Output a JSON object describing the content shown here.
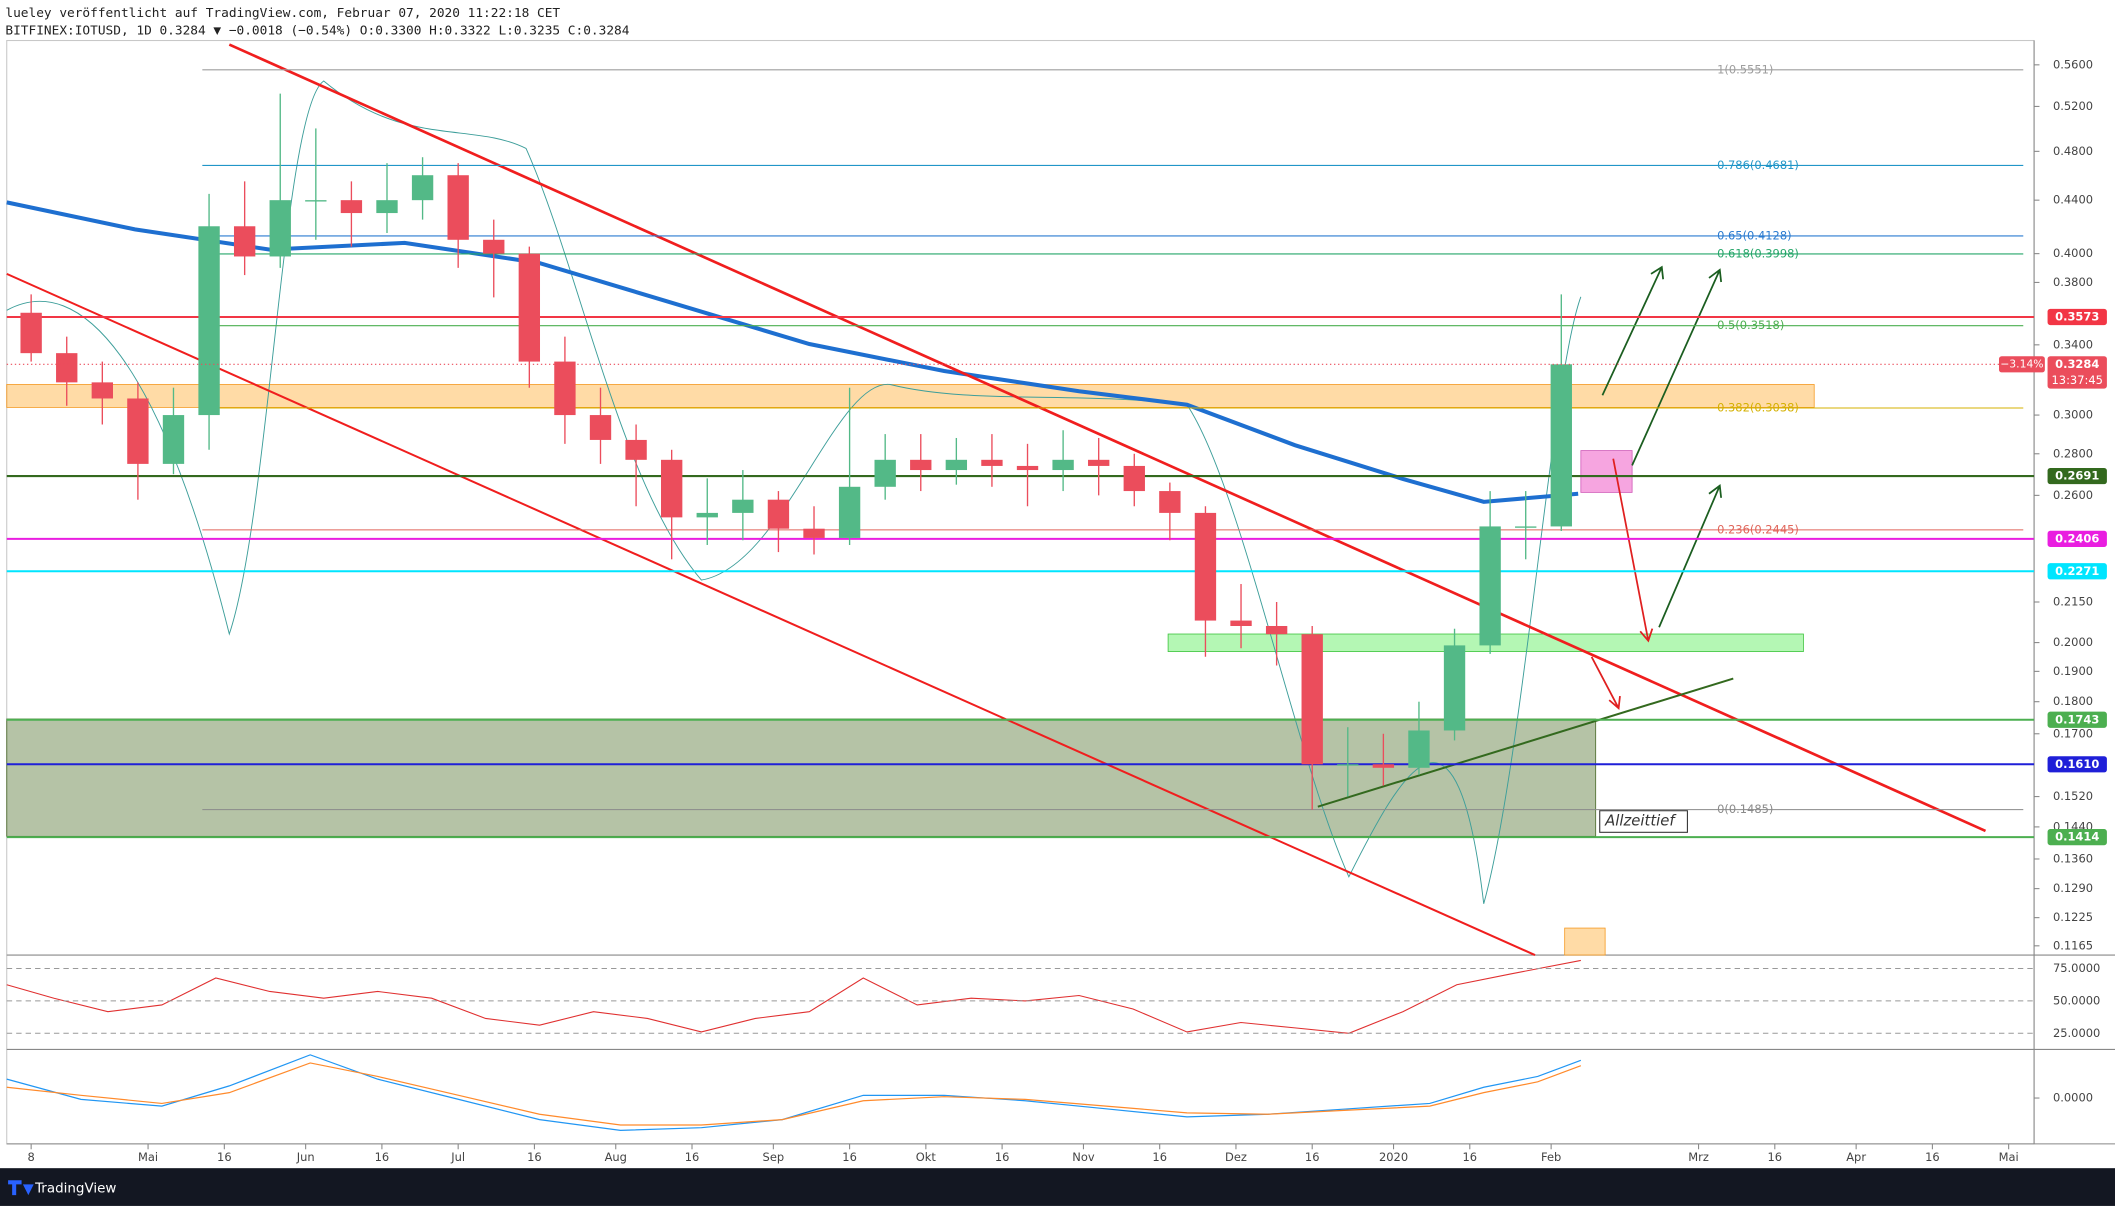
{
  "header": {
    "line1": "lueley veröffentlicht auf TradingView.com, Februar 07, 2020 11:22:18 CET",
    "line2": "BITFINEX:IOTUSD, 1D 0.3284 ▼ −0.0018 (−0.54%) O:0.3300 H:0.3322 L:0.3235 C:0.3284"
  },
  "chart_data": {
    "type": "candlestick",
    "x": [
      0,
      7,
      14,
      21,
      28,
      35,
      42,
      49,
      56,
      63,
      70,
      77,
      84,
      91,
      98,
      105,
      112,
      119,
      126,
      133,
      140,
      147,
      154,
      161,
      168,
      175,
      182,
      189,
      196,
      203,
      210,
      217,
      224,
      231,
      238,
      245,
      252,
      259,
      266,
      273,
      280,
      287,
      294,
      301
    ],
    "open": [
      0.36,
      0.335,
      0.318,
      0.309,
      0.275,
      0.3,
      0.42,
      0.398,
      0.44,
      0.44,
      0.43,
      0.44,
      0.46,
      0.41,
      0.4,
      0.33,
      0.3,
      0.287,
      0.277,
      0.25,
      0.252,
      0.258,
      0.245,
      0.241,
      0.264,
      0.277,
      0.272,
      0.277,
      0.274,
      0.272,
      0.277,
      0.274,
      0.262,
      0.252,
      0.208,
      0.206,
      0.203,
      0.161,
      0.161,
      0.16,
      0.171,
      0.199,
      0.246,
      0.246
    ],
    "high": [
      0.372,
      0.345,
      0.33,
      0.318,
      0.315,
      0.445,
      0.455,
      0.532,
      0.5,
      0.455,
      0.47,
      0.475,
      0.47,
      0.425,
      0.405,
      0.345,
      0.315,
      0.295,
      0.282,
      0.268,
      0.272,
      0.262,
      0.255,
      0.315,
      0.29,
      0.29,
      0.288,
      0.29,
      0.285,
      0.292,
      0.288,
      0.28,
      0.266,
      0.255,
      0.222,
      0.215,
      0.206,
      0.172,
      0.17,
      0.18,
      0.205,
      0.262,
      0.262,
      0.372
    ],
    "low": [
      0.33,
      0.305,
      0.295,
      0.258,
      0.27,
      0.282,
      0.385,
      0.39,
      0.41,
      0.405,
      0.415,
      0.425,
      0.39,
      0.37,
      0.315,
      0.285,
      0.275,
      0.255,
      0.232,
      0.238,
      0.24,
      0.235,
      0.234,
      0.238,
      0.258,
      0.262,
      0.265,
      0.264,
      0.255,
      0.262,
      0.26,
      0.255,
      0.24,
      0.195,
      0.198,
      0.192,
      0.1485,
      0.152,
      0.155,
      0.158,
      0.168,
      0.196,
      0.232,
      0.244
    ],
    "close": [
      0.335,
      0.318,
      0.309,
      0.275,
      0.3,
      0.42,
      0.398,
      0.44,
      0.44,
      0.43,
      0.44,
      0.46,
      0.41,
      0.4,
      0.33,
      0.3,
      0.287,
      0.277,
      0.25,
      0.252,
      0.258,
      0.245,
      0.241,
      0.264,
      0.277,
      0.272,
      0.277,
      0.274,
      0.272,
      0.277,
      0.274,
      0.262,
      0.252,
      0.208,
      0.206,
      0.203,
      0.161,
      0.161,
      0.16,
      0.171,
      0.199,
      0.246,
      0.246,
      0.3284
    ],
    "up_color": "#53b987",
    "down_color": "#eb4d5c",
    "log_scale": true,
    "xlim": [
      -4.8,
      394.0
    ],
    "xticks": [
      {
        "value": 0,
        "label": "8"
      },
      {
        "value": 23,
        "label": "Mai"
      },
      {
        "value": 38,
        "label": "16"
      },
      {
        "value": 54,
        "label": "Jun"
      },
      {
        "value": 69,
        "label": "16"
      },
      {
        "value": 84,
        "label": "Jul"
      },
      {
        "value": 99,
        "label": "16"
      },
      {
        "value": 115,
        "label": "Aug"
      },
      {
        "value": 130,
        "label": "16"
      },
      {
        "value": 146,
        "label": "Sep"
      },
      {
        "value": 161,
        "label": "16"
      },
      {
        "value": 176,
        "label": "Okt"
      },
      {
        "value": 191,
        "label": "16"
      },
      {
        "value": 207,
        "label": "Nov"
      },
      {
        "value": 222,
        "label": "16"
      },
      {
        "value": 237,
        "label": "Dez"
      },
      {
        "value": 252,
        "label": "16"
      },
      {
        "value": 268,
        "label": "2020"
      },
      {
        "value": 283,
        "label": "16"
      },
      {
        "value": 299,
        "label": "Feb"
      },
      {
        "value": 328,
        "label": "Mrz"
      },
      {
        "value": 343,
        "label": "16"
      },
      {
        "value": 359,
        "label": "Apr"
      },
      {
        "value": 374,
        "label": "16"
      },
      {
        "value": 389,
        "label": "Mai"
      }
    ],
    "ylim": [
      0.1146,
      0.5848
    ],
    "yticks": [
      {
        "value": 0.56,
        "label": "0.5600"
      },
      {
        "value": 0.52,
        "label": "0.5200"
      },
      {
        "value": 0.48,
        "label": "0.4800"
      },
      {
        "value": 0.44,
        "label": "0.4400"
      },
      {
        "value": 0.4,
        "label": "0.4000"
      },
      {
        "value": 0.38,
        "label": "0.3800"
      },
      {
        "value": 0.34,
        "label": "0.3400"
      },
      {
        "value": 0.3,
        "label": "0.3000"
      },
      {
        "value": 0.28,
        "label": "0.2800"
      },
      {
        "value": 0.26,
        "label": "0.2600"
      },
      {
        "value": 0.215,
        "label": "0.2150"
      },
      {
        "value": 0.2,
        "label": "0.2000"
      },
      {
        "value": 0.19,
        "label": "0.1900"
      },
      {
        "value": 0.18,
        "label": "0.1800"
      },
      {
        "value": 0.17,
        "label": "0.1700"
      },
      {
        "value": 0.152,
        "label": "0.1520"
      },
      {
        "value": 0.144,
        "label": "0.1440"
      },
      {
        "value": 0.136,
        "label": "0.1360"
      },
      {
        "value": 0.129,
        "label": "0.1290"
      },
      {
        "value": 0.1225,
        "label": "0.1225"
      },
      {
        "value": 0.1165,
        "label": "0.1165"
      }
    ],
    "levels": [
      {
        "value": 0.3573,
        "label": "0.3573",
        "color": "#f23645"
      },
      {
        "value": 0.2691,
        "label": "0.2691",
        "color": "#33691e"
      },
      {
        "value": 0.2406,
        "label": "0.2406",
        "color": "#e91ee0"
      },
      {
        "value": 0.2271,
        "label": "0.2271",
        "color": "#00e5ff"
      },
      {
        "value": 0.1743,
        "label": "0.1743",
        "color": "#4caf50"
      },
      {
        "value": 0.161,
        "label": "0.1610",
        "color": "#1f1fd8"
      },
      {
        "value": 0.1414,
        "label": "0.1414",
        "color": "#4caf50"
      }
    ],
    "fib": [
      {
        "value": 0.5551,
        "label": "1(0.5551)",
        "color": "#9e9e9e"
      },
      {
        "value": 0.4681,
        "label": "0.786(0.4681)",
        "color": "#2196c8"
      },
      {
        "value": 0.4128,
        "label": "0.65(0.4128)",
        "color": "#2a7bd0"
      },
      {
        "value": 0.3998,
        "label": "0.618(0.3998)",
        "color": "#26a66a"
      },
      {
        "value": 0.3518,
        "label": "0.5(0.3518)",
        "color": "#4caf50"
      },
      {
        "value": 0.3038,
        "label": "0.382(0.3038)",
        "color": "#d4b000"
      },
      {
        "value": 0.2445,
        "label": "0.236(0.2445)",
        "color": "#e0655a"
      },
      {
        "value": 0.1485,
        "label": "0(0.1485)",
        "color": "#8a8a8a"
      }
    ],
    "last_price": {
      "value": 0.3284,
      "label": "0.3284",
      "change": "−3.14%",
      "countdown": "13:37:45",
      "color": "#eb4d5c"
    },
    "annotation": "Allzeittief",
    "rsi": {
      "ylim": [
        12.5,
        85.4
      ],
      "yticks": [
        {
          "value": 75,
          "label": "75.0000"
        },
        {
          "value": 50,
          "label": "50.0000"
        },
        {
          "value": 25,
          "label": "25.0000"
        }
      ]
    },
    "macd": {
      "yticks": [
        {
          "value": 0,
          "label": "0.0000"
        }
      ]
    }
  },
  "footer": {
    "brand": "TradingView"
  }
}
